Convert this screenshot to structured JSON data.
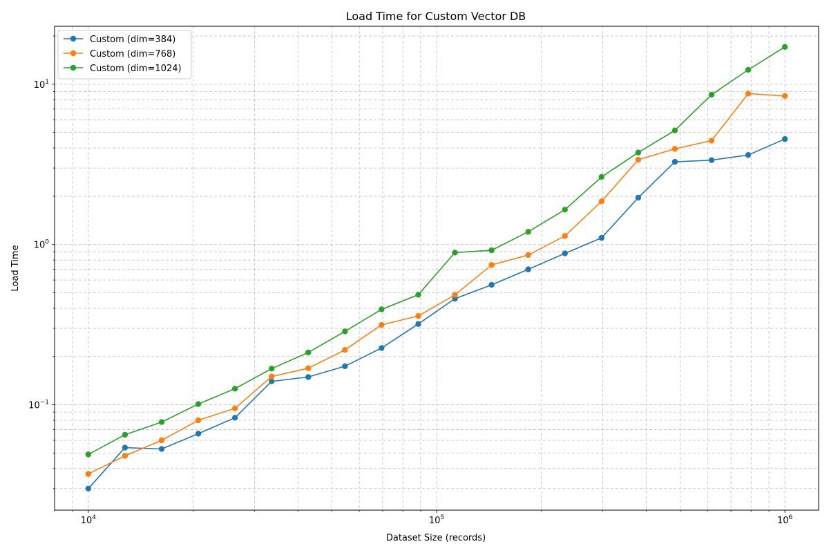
{
  "chart_data": {
    "type": "line",
    "title": "Load Time for Custom Vector DB",
    "xlabel": "Dataset Size (records)",
    "ylabel": "Load Time",
    "x_scale": "log",
    "y_scale": "log",
    "xlim": [
      8000,
      1250000
    ],
    "ylim": [
      0.022,
      23
    ],
    "x_ticks": [
      {
        "value": 10000,
        "base": "10",
        "exp": "4"
      },
      {
        "value": 100000,
        "base": "10",
        "exp": "5"
      },
      {
        "value": 1000000,
        "base": "10",
        "exp": "6"
      }
    ],
    "y_ticks": [
      {
        "value": 0.1,
        "base": "10",
        "exp": "−1"
      },
      {
        "value": 1,
        "base": "10",
        "exp": "0"
      },
      {
        "value": 10,
        "base": "10",
        "exp": "1"
      }
    ],
    "grid": true,
    "legend_position": "top-left",
    "x": [
      10000,
      12743,
      16238,
      20691,
      26367,
      33598,
      42813,
      54556,
      69519,
      88587,
      112884,
      143845,
      183298,
      233572,
      297635,
      379269,
      483293,
      615848,
      784760,
      1000000
    ],
    "series": [
      {
        "name": "Custom (dim=384)",
        "color": "#1f77b4",
        "values": [
          0.03,
          0.054,
          0.053,
          0.066,
          0.083,
          0.14,
          0.149,
          0.174,
          0.226,
          0.319,
          0.459,
          0.56,
          0.7,
          0.88,
          1.1,
          1.96,
          3.28,
          3.36,
          3.62,
          4.55
        ]
      },
      {
        "name": "Custom (dim=768)",
        "color": "#ff7f0e",
        "values": [
          0.037,
          0.048,
          0.06,
          0.08,
          0.095,
          0.15,
          0.169,
          0.22,
          0.315,
          0.358,
          0.485,
          0.745,
          0.86,
          1.13,
          1.86,
          3.38,
          3.95,
          4.45,
          8.74,
          8.45
        ]
      },
      {
        "name": "Custom (dim=1024)",
        "color": "#2ca02c",
        "values": [
          0.049,
          0.065,
          0.078,
          0.101,
          0.126,
          0.168,
          0.212,
          0.287,
          0.394,
          0.486,
          0.89,
          0.92,
          1.2,
          1.65,
          2.64,
          3.75,
          5.15,
          8.6,
          12.3,
          17.1
        ]
      }
    ]
  }
}
